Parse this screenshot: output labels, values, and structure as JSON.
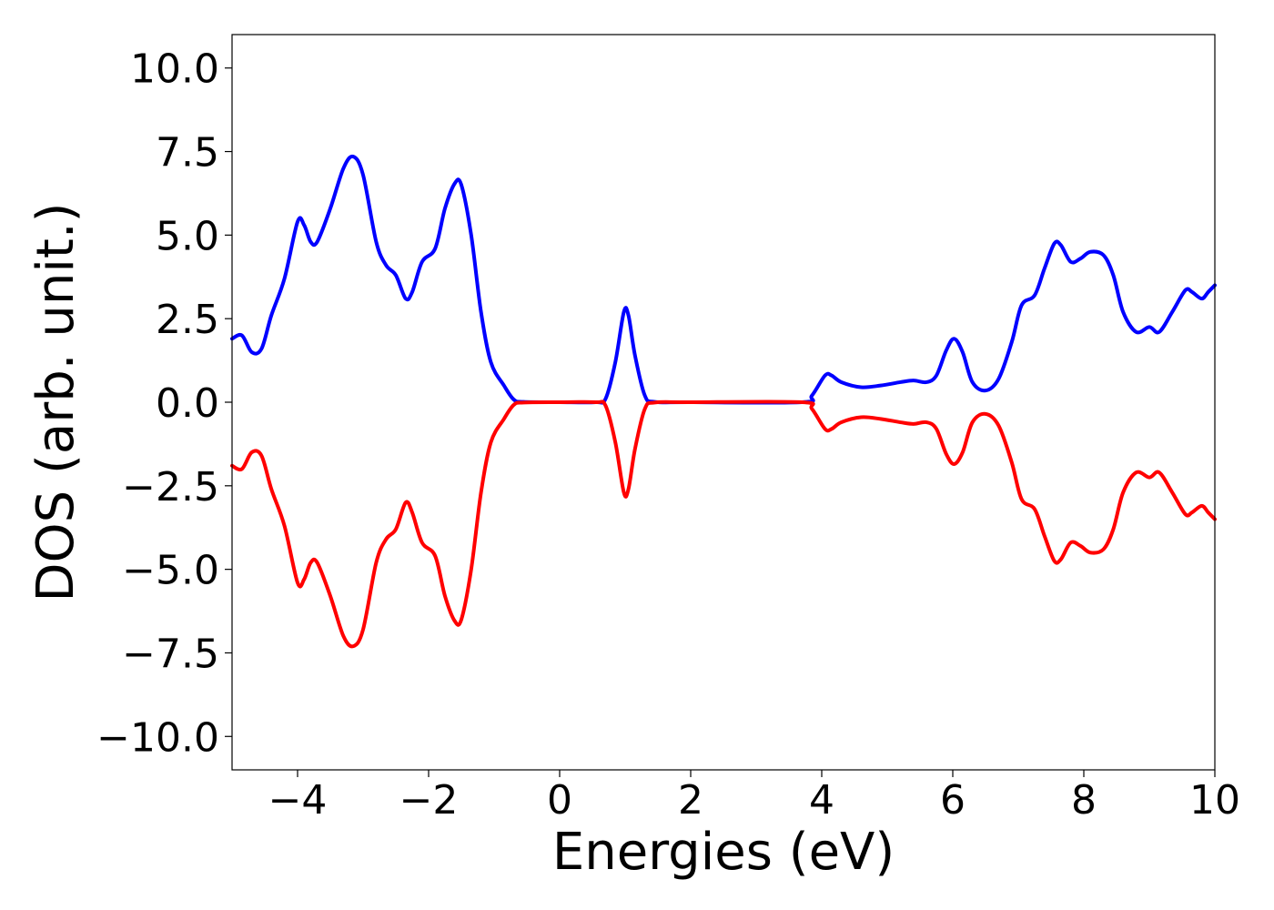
{
  "chart_data": {
    "type": "line",
    "title": "",
    "xlabel": "Energies (eV)",
    "ylabel": "DOS (arb. unit.)",
    "xlim": [
      -5,
      10
    ],
    "ylim": [
      -11,
      11
    ],
    "xticks": [
      -4,
      -2,
      0,
      2,
      4,
      6,
      8,
      10
    ],
    "xtick_labels": [
      "−4",
      "−2",
      "0",
      "2",
      "4",
      "6",
      "8",
      "10"
    ],
    "yticks": [
      10,
      7.5,
      5,
      2.5,
      0,
      -2.5,
      -5,
      -7.5,
      -10
    ],
    "ytick_labels": [
      "10.0",
      "7.5",
      "5.0",
      "2.5",
      "0.0",
      "−2.5",
      "−5.0",
      "−7.5",
      "−10.0"
    ],
    "grid": false,
    "legend": "none",
    "series": [
      {
        "color": "#0000ff",
        "points": [
          [
            -5.0,
            1.9
          ],
          [
            -4.85,
            2.0
          ],
          [
            -4.7,
            1.5
          ],
          [
            -4.55,
            1.6
          ],
          [
            -4.4,
            2.6
          ],
          [
            -4.2,
            3.7
          ],
          [
            -4.0,
            5.4
          ],
          [
            -3.9,
            5.3
          ],
          [
            -3.8,
            4.8
          ],
          [
            -3.7,
            4.8
          ],
          [
            -3.5,
            5.8
          ],
          [
            -3.3,
            7.0
          ],
          [
            -3.15,
            7.35
          ],
          [
            -3.0,
            6.8
          ],
          [
            -2.8,
            4.8
          ],
          [
            -2.65,
            4.1
          ],
          [
            -2.5,
            3.8
          ],
          [
            -2.35,
            3.1
          ],
          [
            -2.25,
            3.3
          ],
          [
            -2.1,
            4.2
          ],
          [
            -1.9,
            4.6
          ],
          [
            -1.75,
            5.8
          ],
          [
            -1.6,
            6.55
          ],
          [
            -1.5,
            6.5
          ],
          [
            -1.35,
            5.0
          ],
          [
            -1.2,
            2.7
          ],
          [
            -1.05,
            1.2
          ],
          [
            -0.85,
            0.5
          ],
          [
            -0.7,
            0.08
          ],
          [
            -0.55,
            0.01
          ],
          [
            0.0,
            0.0
          ],
          [
            0.55,
            0.0
          ],
          [
            0.7,
            0.1
          ],
          [
            0.85,
            1.2
          ],
          [
            0.98,
            2.7
          ],
          [
            1.05,
            2.6
          ],
          [
            1.15,
            1.4
          ],
          [
            1.3,
            0.2
          ],
          [
            1.45,
            0.01
          ],
          [
            2.0,
            0.0
          ],
          [
            3.7,
            0.0
          ],
          [
            3.85,
            0.2
          ],
          [
            4.05,
            0.8
          ],
          [
            4.15,
            0.8
          ],
          [
            4.3,
            0.6
          ],
          [
            4.6,
            0.45
          ],
          [
            4.9,
            0.5
          ],
          [
            5.2,
            0.6
          ],
          [
            5.4,
            0.65
          ],
          [
            5.6,
            0.6
          ],
          [
            5.75,
            0.8
          ],
          [
            5.9,
            1.55
          ],
          [
            6.02,
            1.9
          ],
          [
            6.15,
            1.5
          ],
          [
            6.3,
            0.6
          ],
          [
            6.5,
            0.35
          ],
          [
            6.7,
            0.7
          ],
          [
            6.9,
            1.8
          ],
          [
            7.05,
            2.9
          ],
          [
            7.25,
            3.2
          ],
          [
            7.4,
            4.0
          ],
          [
            7.55,
            4.75
          ],
          [
            7.65,
            4.7
          ],
          [
            7.8,
            4.2
          ],
          [
            7.95,
            4.3
          ],
          [
            8.1,
            4.5
          ],
          [
            8.3,
            4.4
          ],
          [
            8.45,
            3.8
          ],
          [
            8.6,
            2.7
          ],
          [
            8.8,
            2.1
          ],
          [
            9.0,
            2.25
          ],
          [
            9.15,
            2.1
          ],
          [
            9.35,
            2.7
          ],
          [
            9.55,
            3.35
          ],
          [
            9.65,
            3.3
          ],
          [
            9.8,
            3.1
          ],
          [
            9.9,
            3.3
          ],
          [
            10.0,
            3.5
          ]
        ]
      },
      {
        "color": "#ff0000",
        "points": [
          [
            -5.0,
            -1.9
          ],
          [
            -4.85,
            -2.0
          ],
          [
            -4.7,
            -1.5
          ],
          [
            -4.55,
            -1.6
          ],
          [
            -4.4,
            -2.6
          ],
          [
            -4.2,
            -3.7
          ],
          [
            -4.0,
            -5.4
          ],
          [
            -3.9,
            -5.3
          ],
          [
            -3.8,
            -4.8
          ],
          [
            -3.7,
            -4.8
          ],
          [
            -3.5,
            -5.8
          ],
          [
            -3.3,
            -7.0
          ],
          [
            -3.15,
            -7.3
          ],
          [
            -3.0,
            -6.8
          ],
          [
            -2.8,
            -4.8
          ],
          [
            -2.65,
            -4.1
          ],
          [
            -2.5,
            -3.8
          ],
          [
            -2.35,
            -3.0
          ],
          [
            -2.25,
            -3.3
          ],
          [
            -2.1,
            -4.2
          ],
          [
            -1.9,
            -4.6
          ],
          [
            -1.75,
            -5.8
          ],
          [
            -1.6,
            -6.55
          ],
          [
            -1.5,
            -6.5
          ],
          [
            -1.35,
            -5.0
          ],
          [
            -1.2,
            -2.7
          ],
          [
            -1.05,
            -1.2
          ],
          [
            -0.85,
            -0.5
          ],
          [
            -0.7,
            -0.08
          ],
          [
            -0.55,
            -0.01
          ],
          [
            0.0,
            0.0
          ],
          [
            0.55,
            0.0
          ],
          [
            0.7,
            -0.1
          ],
          [
            0.85,
            -1.2
          ],
          [
            0.98,
            -2.7
          ],
          [
            1.05,
            -2.6
          ],
          [
            1.15,
            -1.4
          ],
          [
            1.3,
            -0.2
          ],
          [
            1.45,
            -0.01
          ],
          [
            2.0,
            0.0
          ],
          [
            3.7,
            0.0
          ],
          [
            3.85,
            -0.2
          ],
          [
            4.05,
            -0.8
          ],
          [
            4.15,
            -0.8
          ],
          [
            4.3,
            -0.6
          ],
          [
            4.6,
            -0.45
          ],
          [
            4.9,
            -0.5
          ],
          [
            5.2,
            -0.6
          ],
          [
            5.4,
            -0.65
          ],
          [
            5.6,
            -0.6
          ],
          [
            5.75,
            -0.8
          ],
          [
            5.9,
            -1.55
          ],
          [
            6.02,
            -1.85
          ],
          [
            6.15,
            -1.5
          ],
          [
            6.3,
            -0.6
          ],
          [
            6.5,
            -0.35
          ],
          [
            6.7,
            -0.7
          ],
          [
            6.9,
            -1.8
          ],
          [
            7.05,
            -2.9
          ],
          [
            7.25,
            -3.2
          ],
          [
            7.4,
            -4.0
          ],
          [
            7.55,
            -4.75
          ],
          [
            7.65,
            -4.7
          ],
          [
            7.8,
            -4.2
          ],
          [
            7.95,
            -4.3
          ],
          [
            8.1,
            -4.5
          ],
          [
            8.3,
            -4.4
          ],
          [
            8.45,
            -3.8
          ],
          [
            8.6,
            -2.7
          ],
          [
            8.8,
            -2.1
          ],
          [
            9.0,
            -2.25
          ],
          [
            9.15,
            -2.1
          ],
          [
            9.35,
            -2.7
          ],
          [
            9.55,
            -3.35
          ],
          [
            9.65,
            -3.3
          ],
          [
            9.8,
            -3.1
          ],
          [
            9.9,
            -3.3
          ],
          [
            10.0,
            -3.5
          ]
        ]
      }
    ]
  }
}
